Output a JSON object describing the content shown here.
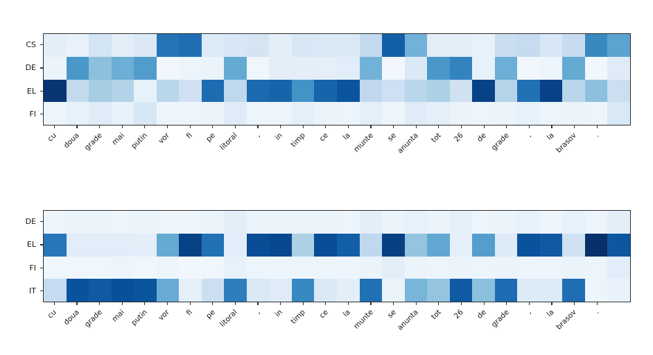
{
  "figure": {
    "background": "#ffffff",
    "frame_color": "#2c2c2c",
    "colormap": "Blues",
    "colormap_stops": [
      "#f7fbff",
      "#deebf7",
      "#c6dbef",
      "#9ecae1",
      "#6baed6",
      "#4292c6",
      "#2171b5",
      "#08519c",
      "#08306b"
    ]
  },
  "chart_data": [
    {
      "type": "heatmap",
      "title": "",
      "legend_position": "none",
      "grid": false,
      "value_range": [
        0,
        1
      ],
      "n_cols": 26,
      "unlabeled_last_col": true,
      "x_labels": [
        "cu",
        "doua",
        "grade",
        "mai",
        "putin",
        "vor",
        "fi",
        "pe",
        "litoral",
        ",",
        "in",
        "timp",
        "ce",
        "la",
        "munte",
        "se",
        "anunta",
        "tot",
        "26",
        "de",
        "grade",
        ",",
        "la",
        "brasov",
        "."
      ],
      "y_labels": [
        "CS",
        "DE",
        "EL",
        "FI"
      ],
      "values": [
        [
          0.1,
          0.07,
          0.18,
          0.1,
          0.14,
          0.74,
          0.76,
          0.13,
          0.16,
          0.18,
          0.1,
          0.16,
          0.14,
          0.14,
          0.26,
          0.82,
          0.48,
          0.1,
          0.1,
          0.08,
          0.23,
          0.25,
          0.16,
          0.24,
          0.66,
          0.55
        ],
        [
          0.06,
          0.6,
          0.42,
          0.5,
          0.58,
          0.03,
          0.05,
          0.06,
          0.52,
          0.04,
          0.1,
          0.1,
          0.09,
          0.11,
          0.48,
          0.03,
          0.14,
          0.6,
          0.68,
          0.08,
          0.5,
          0.03,
          0.05,
          0.52,
          0.03,
          0.12
        ],
        [
          0.98,
          0.26,
          0.35,
          0.31,
          0.08,
          0.29,
          0.2,
          0.77,
          0.27,
          0.78,
          0.8,
          0.62,
          0.8,
          0.86,
          0.27,
          0.21,
          0.29,
          0.33,
          0.2,
          0.93,
          0.3,
          0.75,
          0.93,
          0.29,
          0.42,
          0.22
        ],
        [
          0.05,
          0.08,
          0.12,
          0.08,
          0.16,
          0.05,
          0.05,
          0.06,
          0.12,
          0.05,
          0.05,
          0.09,
          0.06,
          0.05,
          0.09,
          0.05,
          0.12,
          0.09,
          0.06,
          0.05,
          0.06,
          0.08,
          0.05,
          0.06,
          0.05,
          0.15
        ]
      ]
    },
    {
      "type": "heatmap",
      "title": "",
      "legend_position": "none",
      "grid": false,
      "value_range": [
        0,
        1
      ],
      "n_cols": 26,
      "unlabeled_last_col": true,
      "x_labels": [
        "cu",
        "doua",
        "grade",
        "mai",
        "putin",
        "vor",
        "fi",
        "pe",
        "litoral",
        ",",
        "in",
        "timp",
        "ce",
        "la",
        "munte",
        "se",
        "anunta",
        "tot",
        "26",
        "de",
        "grade",
        ",",
        "la",
        "brasov",
        "."
      ],
      "y_labels": [
        "DE",
        "EL",
        "FI",
        "IT"
      ],
      "values": [
        [
          0.05,
          0.06,
          0.06,
          0.05,
          0.06,
          0.05,
          0.05,
          0.06,
          0.1,
          0.06,
          0.06,
          0.06,
          0.06,
          0.05,
          0.1,
          0.06,
          0.08,
          0.06,
          0.09,
          0.05,
          0.06,
          0.08,
          0.05,
          0.08,
          0.05,
          0.1
        ],
        [
          0.73,
          0.11,
          0.11,
          0.11,
          0.1,
          0.52,
          0.93,
          0.75,
          0.11,
          0.89,
          0.91,
          0.33,
          0.89,
          0.82,
          0.27,
          0.94,
          0.4,
          0.53,
          0.09,
          0.57,
          0.13,
          0.87,
          0.84,
          0.2,
          1.0,
          0.85
        ],
        [
          0.04,
          0.04,
          0.04,
          0.05,
          0.04,
          0.05,
          0.03,
          0.04,
          0.08,
          0.05,
          0.05,
          0.05,
          0.05,
          0.05,
          0.06,
          0.1,
          0.06,
          0.05,
          0.06,
          0.05,
          0.06,
          0.05,
          0.05,
          0.06,
          0.05,
          0.11
        ],
        [
          0.25,
          0.87,
          0.84,
          0.88,
          0.86,
          0.51,
          0.09,
          0.22,
          0.7,
          0.15,
          0.12,
          0.66,
          0.14,
          0.1,
          0.75,
          0.06,
          0.47,
          0.4,
          0.84,
          0.42,
          0.77,
          0.13,
          0.13,
          0.76,
          0.05,
          0.07
        ]
      ]
    }
  ],
  "layout_note": "two stacked heatmaps sharing identical x tokens; 26th column has no tick label"
}
